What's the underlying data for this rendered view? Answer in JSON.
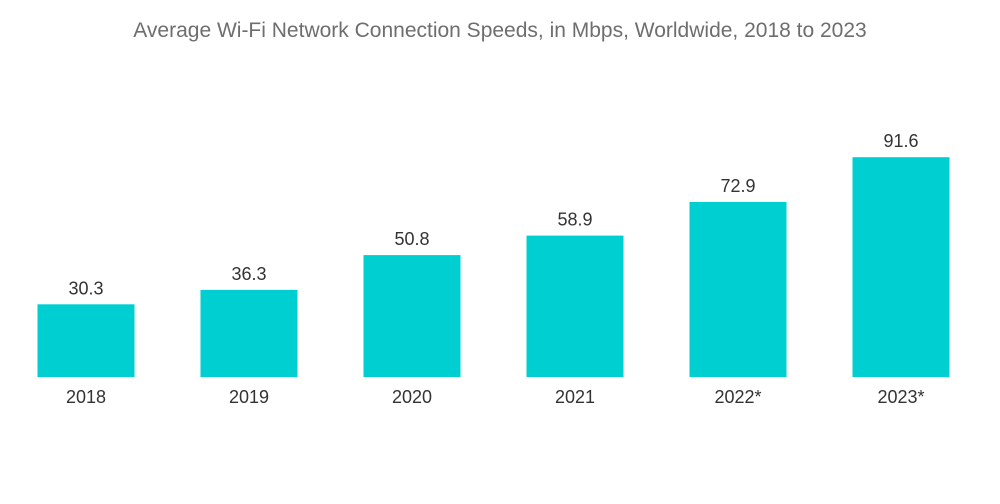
{
  "chart_data": {
    "type": "bar",
    "title": "Average Wi-Fi Network Connection Speeds, in Mbps, Worldwide,  2018 to 2023",
    "categories": [
      "2018",
      "2019",
      "2020",
      "2021",
      "2022*",
      "2023*"
    ],
    "values": [
      30.3,
      36.3,
      50.8,
      58.9,
      72.9,
      91.6
    ],
    "value_labels": [
      "30.3",
      "36.3",
      "50.8",
      "58.9",
      "72.9",
      "91.6"
    ],
    "xlabel": "",
    "ylabel": "",
    "ylim": [
      0,
      100
    ],
    "grid": false,
    "legend": "none",
    "bar_color": "#00cfd2"
  }
}
